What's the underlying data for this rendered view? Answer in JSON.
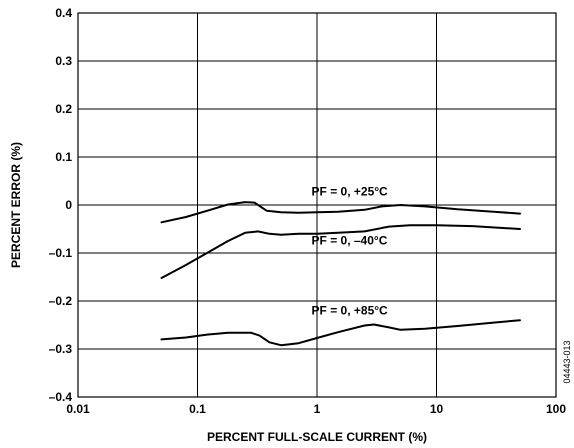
{
  "chart_data": {
    "type": "line",
    "xlabel": "PERCENT FULL-SCALE CURRENT (%)",
    "ylabel": "PERCENT ERROR (%)",
    "xscale": "log",
    "xlim": [
      0.01,
      100
    ],
    "ylim": [
      -0.4,
      0.4
    ],
    "grid": true,
    "x_ticks": [
      0.01,
      0.1,
      1,
      10,
      100
    ],
    "x_tick_labels": [
      "0.01",
      "0.1",
      "1",
      "10",
      "100"
    ],
    "y_ticks": [
      0.4,
      0.3,
      0.2,
      0.1,
      0,
      -0.1,
      -0.2,
      -0.3,
      -0.4
    ],
    "y_tick_labels": [
      "0.4",
      "0.3",
      "0.2",
      "0.1",
      "0",
      "–0.1",
      "–0.2",
      "–0.3",
      "–0.4"
    ],
    "figure_code": "04443-013",
    "series": [
      {
        "name": "PF = 0, +25°C",
        "x": [
          0.05,
          0.08,
          0.12,
          0.18,
          0.25,
          0.3,
          0.38,
          0.5,
          0.7,
          1,
          1.5,
          2.5,
          3.5,
          5,
          8,
          15,
          30,
          50
        ],
        "y": [
          -0.036,
          -0.025,
          -0.012,
          0.001,
          0.006,
          0.005,
          -0.012,
          -0.015,
          -0.016,
          -0.015,
          -0.014,
          -0.01,
          -0.003,
          0,
          -0.003,
          -0.009,
          -0.014,
          -0.018
        ]
      },
      {
        "name": "PF = 0, –40°C",
        "x": [
          0.05,
          0.08,
          0.12,
          0.18,
          0.25,
          0.32,
          0.4,
          0.5,
          0.7,
          1,
          1.5,
          2.5,
          4,
          6,
          10,
          20,
          50
        ],
        "y": [
          -0.152,
          -0.125,
          -0.1,
          -0.075,
          -0.058,
          -0.055,
          -0.06,
          -0.062,
          -0.06,
          -0.06,
          -0.058,
          -0.055,
          -0.045,
          -0.042,
          -0.042,
          -0.044,
          -0.05
        ]
      },
      {
        "name": "PF = 0, +85°C",
        "x": [
          0.05,
          0.08,
          0.12,
          0.18,
          0.28,
          0.33,
          0.4,
          0.5,
          0.7,
          1,
          1.5,
          2.5,
          3,
          4,
          5,
          8,
          15,
          30,
          50
        ],
        "y": [
          -0.28,
          -0.276,
          -0.27,
          -0.266,
          -0.266,
          -0.272,
          -0.286,
          -0.292,
          -0.288,
          -0.277,
          -0.265,
          -0.251,
          -0.249,
          -0.255,
          -0.26,
          -0.258,
          -0.252,
          -0.245,
          -0.24
        ]
      }
    ],
    "annotations": [
      {
        "text": "PF = 0, +25°C",
        "x": 0.9,
        "y": 0.02
      },
      {
        "text": "PF = 0, –40°C",
        "x": 0.9,
        "y": -0.082
      },
      {
        "text": "PF = 0, +85°C",
        "x": 0.9,
        "y": -0.228
      }
    ]
  }
}
